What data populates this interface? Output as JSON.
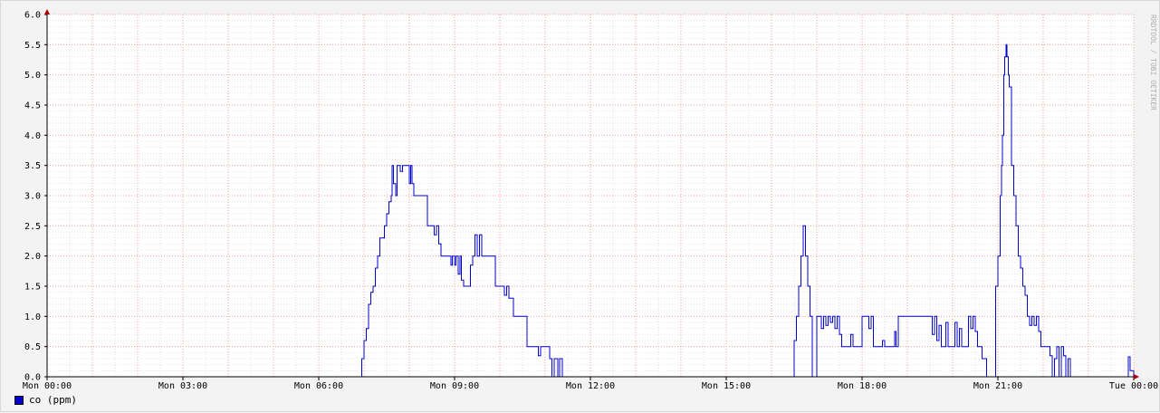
{
  "chart_data": {
    "type": "line",
    "watermark": "RRDTOOL / TOBI OETIKER",
    "y_ticks": [
      "0.0",
      "0.5",
      "1.0",
      "1.5",
      "2.0",
      "2.5",
      "3.0",
      "3.5",
      "4.0",
      "4.5",
      "5.0",
      "5.5",
      "6.0"
    ],
    "x_ticks": [
      "Mon 00:00",
      "Mon 03:00",
      "Mon 06:00",
      "Mon 09:00",
      "Mon 12:00",
      "Mon 15:00",
      "Mon 18:00",
      "Mon 21:00",
      "Tue 00:00"
    ],
    "ylim": [
      0,
      6
    ],
    "xlim_hours": [
      0,
      24
    ],
    "grid": true,
    "legend_position": "bottom-left",
    "series": [
      {
        "name": "co (ppm)",
        "color": "#0000cc",
        "points": [
          [
            0,
            0
          ],
          [
            6.92,
            0
          ],
          [
            6.95,
            0.3
          ],
          [
            7.0,
            0.6
          ],
          [
            7.05,
            0.8
          ],
          [
            7.1,
            1.2
          ],
          [
            7.15,
            1.4
          ],
          [
            7.2,
            1.5
          ],
          [
            7.25,
            1.8
          ],
          [
            7.3,
            2.0
          ],
          [
            7.35,
            2.3
          ],
          [
            7.45,
            2.5
          ],
          [
            7.5,
            2.7
          ],
          [
            7.55,
            2.9
          ],
          [
            7.6,
            3.0
          ],
          [
            7.62,
            3.5
          ],
          [
            7.65,
            3.2
          ],
          [
            7.7,
            3.0
          ],
          [
            7.73,
            3.5
          ],
          [
            7.8,
            3.4
          ],
          [
            7.85,
            3.5
          ],
          [
            7.95,
            3.5
          ],
          [
            8.0,
            3.2
          ],
          [
            8.03,
            3.5
          ],
          [
            8.06,
            3.2
          ],
          [
            8.1,
            3.0
          ],
          [
            8.35,
            3.0
          ],
          [
            8.4,
            2.5
          ],
          [
            8.5,
            2.5
          ],
          [
            8.55,
            2.35
          ],
          [
            8.6,
            2.5
          ],
          [
            8.65,
            2.2
          ],
          [
            8.7,
            2.0
          ],
          [
            8.9,
            2.0
          ],
          [
            8.92,
            1.85
          ],
          [
            8.95,
            2.0
          ],
          [
            9.0,
            1.85
          ],
          [
            9.03,
            2.0
          ],
          [
            9.08,
            1.7
          ],
          [
            9.12,
            2.0
          ],
          [
            9.15,
            1.6
          ],
          [
            9.2,
            1.5
          ],
          [
            9.3,
            1.5
          ],
          [
            9.35,
            1.85
          ],
          [
            9.4,
            2.0
          ],
          [
            9.45,
            2.35
          ],
          [
            9.5,
            2.0
          ],
          [
            9.55,
            2.35
          ],
          [
            9.6,
            2.0
          ],
          [
            9.85,
            2.0
          ],
          [
            9.9,
            1.5
          ],
          [
            10.05,
            1.5
          ],
          [
            10.1,
            1.35
          ],
          [
            10.15,
            1.5
          ],
          [
            10.2,
            1.3
          ],
          [
            10.3,
            1.0
          ],
          [
            10.55,
            1.0
          ],
          [
            10.6,
            0.5
          ],
          [
            10.8,
            0.5
          ],
          [
            10.85,
            0.35
          ],
          [
            10.9,
            0.5
          ],
          [
            11.05,
            0.5
          ],
          [
            11.1,
            0.3
          ],
          [
            11.15,
            0.0
          ],
          [
            11.2,
            0.3
          ],
          [
            11.28,
            0.0
          ],
          [
            11.32,
            0.3
          ],
          [
            11.38,
            0.0
          ],
          [
            16.45,
            0.0
          ],
          [
            16.5,
            0.6
          ],
          [
            16.55,
            1.0
          ],
          [
            16.6,
            1.5
          ],
          [
            16.65,
            2.0
          ],
          [
            16.7,
            2.5
          ],
          [
            16.75,
            2.0
          ],
          [
            16.8,
            1.5
          ],
          [
            16.85,
            1.0
          ],
          [
            16.9,
            0.0
          ],
          [
            17.0,
            0.0
          ],
          [
            17.0,
            1.0
          ],
          [
            17.1,
            0.8
          ],
          [
            17.15,
            1.0
          ],
          [
            17.2,
            0.85
          ],
          [
            17.25,
            1.0
          ],
          [
            17.3,
            0.9
          ],
          [
            17.35,
            1.0
          ],
          [
            17.4,
            0.8
          ],
          [
            17.45,
            1.0
          ],
          [
            17.5,
            0.7
          ],
          [
            17.55,
            0.5
          ],
          [
            17.7,
            0.5
          ],
          [
            17.75,
            0.7
          ],
          [
            17.8,
            0.5
          ],
          [
            17.95,
            0.5
          ],
          [
            18.0,
            1.0
          ],
          [
            18.1,
            1.0
          ],
          [
            18.15,
            0.8
          ],
          [
            18.2,
            1.0
          ],
          [
            18.25,
            0.5
          ],
          [
            18.4,
            0.5
          ],
          [
            18.45,
            0.6
          ],
          [
            18.5,
            0.5
          ],
          [
            18.7,
            0.5
          ],
          [
            18.72,
            0.75
          ],
          [
            18.75,
            0.5
          ],
          [
            18.8,
            1.0
          ],
          [
            19.5,
            1.0
          ],
          [
            19.55,
            0.7
          ],
          [
            19.6,
            1.0
          ],
          [
            19.65,
            0.6
          ],
          [
            19.7,
            0.85
          ],
          [
            19.75,
            0.5
          ],
          [
            19.8,
            0.5
          ],
          [
            19.85,
            0.9
          ],
          [
            19.9,
            0.5
          ],
          [
            20.0,
            0.5
          ],
          [
            20.05,
            0.9
          ],
          [
            20.1,
            0.5
          ],
          [
            20.15,
            0.8
          ],
          [
            20.2,
            0.5
          ],
          [
            20.3,
            0.5
          ],
          [
            20.35,
            1.0
          ],
          [
            20.4,
            0.8
          ],
          [
            20.45,
            1.0
          ],
          [
            20.5,
            0.75
          ],
          [
            20.55,
            0.5
          ],
          [
            20.6,
            0.5
          ],
          [
            20.65,
            0.3
          ],
          [
            20.75,
            0.0
          ],
          [
            20.95,
            0.0
          ],
          [
            20.95,
            1.5
          ],
          [
            21.0,
            2.0
          ],
          [
            21.05,
            3.0
          ],
          [
            21.08,
            3.5
          ],
          [
            21.1,
            4.0
          ],
          [
            21.13,
            5.0
          ],
          [
            21.15,
            5.3
          ],
          [
            21.18,
            5.5
          ],
          [
            21.2,
            5.3
          ],
          [
            21.23,
            5.0
          ],
          [
            21.25,
            4.8
          ],
          [
            21.3,
            3.5
          ],
          [
            21.35,
            3.0
          ],
          [
            21.4,
            2.5
          ],
          [
            21.45,
            2.0
          ],
          [
            21.5,
            1.8
          ],
          [
            21.55,
            1.5
          ],
          [
            21.6,
            1.35
          ],
          [
            21.65,
            1.0
          ],
          [
            21.7,
            0.85
          ],
          [
            21.75,
            1.0
          ],
          [
            21.8,
            0.85
          ],
          [
            21.85,
            1.0
          ],
          [
            21.9,
            0.75
          ],
          [
            21.95,
            0.5
          ],
          [
            22.1,
            0.5
          ],
          [
            22.15,
            0.35
          ],
          [
            22.2,
            0.0
          ],
          [
            22.25,
            0.3
          ],
          [
            22.3,
            0.5
          ],
          [
            22.35,
            0.0
          ],
          [
            22.4,
            0.5
          ],
          [
            22.45,
            0.35
          ],
          [
            22.5,
            0.0
          ],
          [
            22.55,
            0.3
          ],
          [
            22.6,
            0.0
          ],
          [
            23.85,
            0.0
          ],
          [
            23.88,
            0.33
          ],
          [
            23.92,
            0.1
          ],
          [
            24.0,
            0.0
          ]
        ]
      }
    ]
  }
}
